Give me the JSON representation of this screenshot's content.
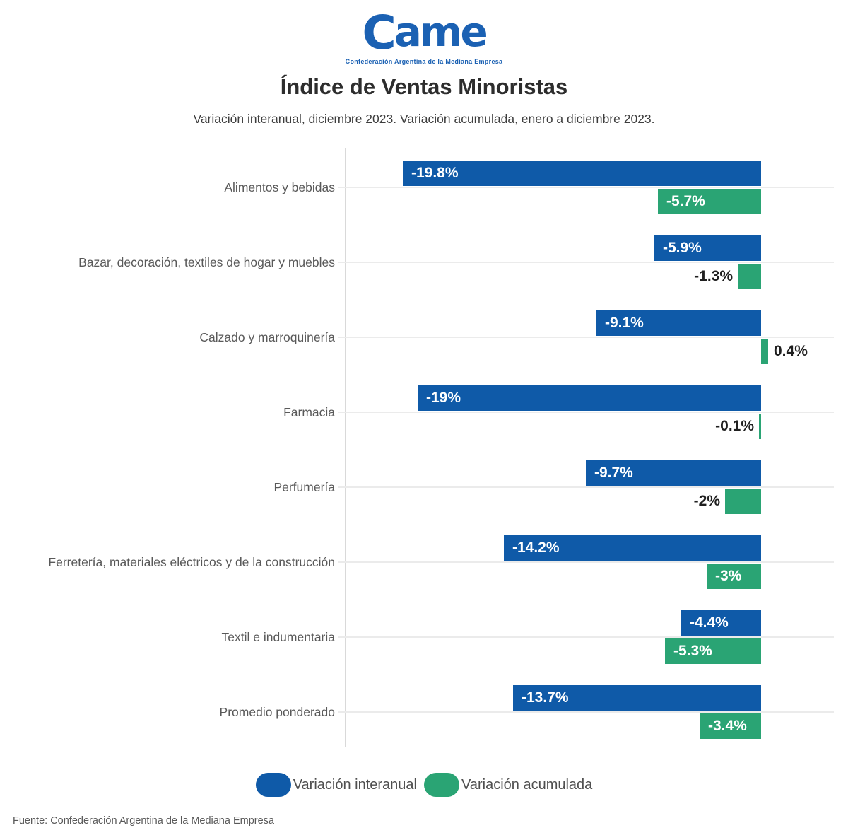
{
  "logo": {
    "name": "Came",
    "tagline": "Confederación Argentina de la Mediana Empresa"
  },
  "header": {
    "title": "Índice de Ventas Minoristas",
    "subtitle": "Variación interanual, diciembre 2023. Variación acumulada, enero a diciembre 2023."
  },
  "chart_data": {
    "type": "bar",
    "orientation": "horizontal",
    "title": "Índice de Ventas Minoristas",
    "subtitle": "Variación interanual, diciembre 2023. Variación acumulada, enero a diciembre 2023.",
    "categories": [
      "Alimentos y bebidas",
      "Bazar, decoración, textiles de hogar y muebles",
      "Calzado y marroquinería",
      "Farmacia",
      "Perfumería",
      "Ferretería, materiales eléctricos y de la construcción",
      "Textil e indumentaria",
      "Promedio ponderado"
    ],
    "series": [
      {
        "name": "Variación interanual",
        "color": "#0f5aa8",
        "values": [
          -19.8,
          -5.9,
          -9.1,
          -19,
          -9.7,
          -14.2,
          -4.4,
          -13.7
        ],
        "labels": [
          "-19.8%",
          "-5.9%",
          "-9.1%",
          "-19%",
          "-9.7%",
          "-14.2%",
          "-4.4%",
          "-13.7%"
        ]
      },
      {
        "name": "Variación acumulada",
        "color": "#2aa474",
        "values": [
          -5.7,
          -1.3,
          0.4,
          -0.1,
          -2,
          -3,
          -5.3,
          -3.4
        ],
        "labels": [
          "-5.7%",
          "-1.3%",
          "0.4%",
          "-0.1%",
          "-2%",
          "-3%",
          "-5.3%",
          "-3.4%"
        ]
      }
    ],
    "xlim": [
      -23,
      3.3
    ],
    "grid": "per-category horizontal lines",
    "axis_line": "left vertical, light gray",
    "legend_position": "bottom-center"
  },
  "legend": {
    "items": [
      {
        "label": "Variación interanual",
        "color": "#0f5aa8"
      },
      {
        "label": "Variación acumulada",
        "color": "#2aa474"
      }
    ]
  },
  "footer": {
    "source": "Fuente: Confederación Argentina de la Mediana Empresa"
  }
}
